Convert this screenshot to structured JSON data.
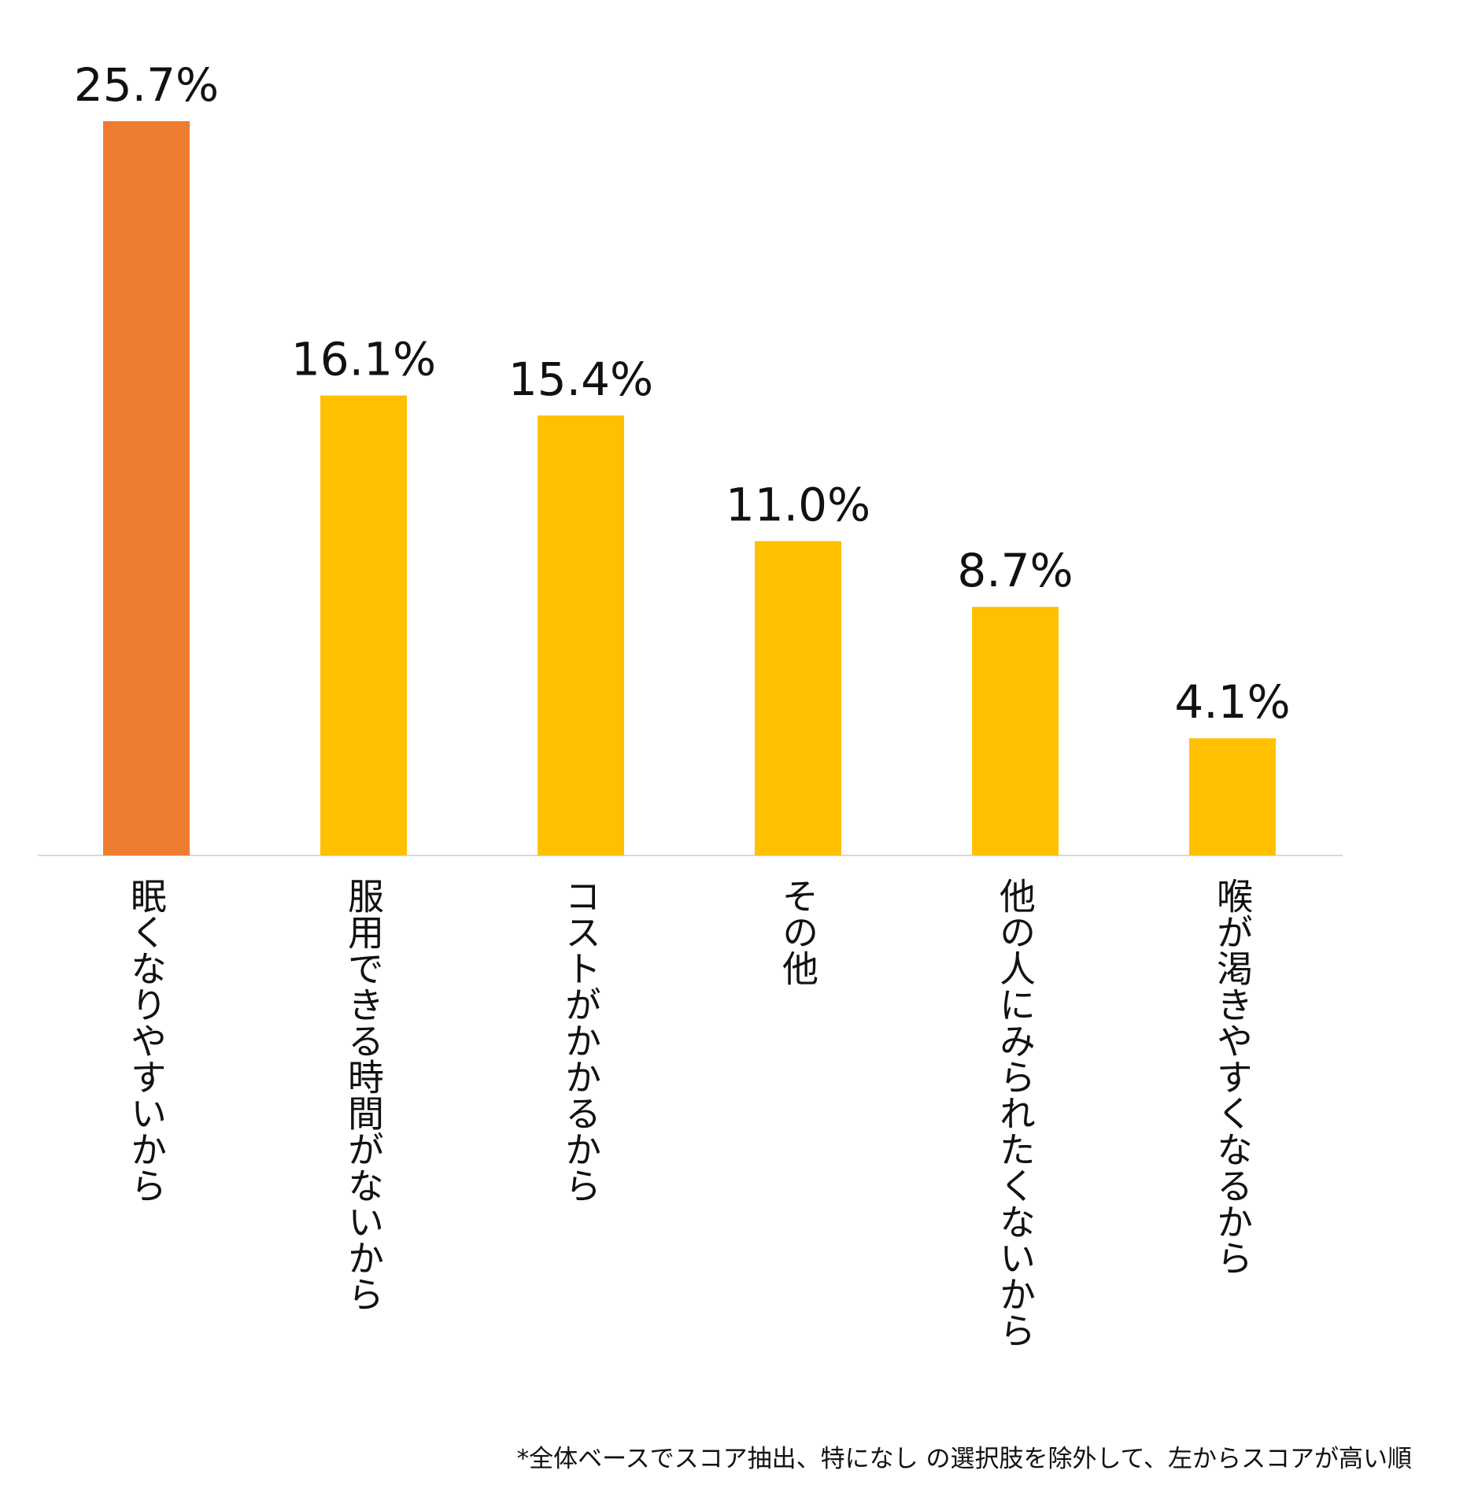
{
  "chart_data": {
    "type": "bar",
    "title": "",
    "xlabel": "",
    "ylabel": "",
    "ylim": [
      0,
      25.7
    ],
    "grid": false,
    "unit": "%",
    "categories": [
      "眠くなりやすいから",
      "服用できる時間がないから",
      "コストがかかるから",
      "その他",
      "他の人にみられたくないから",
      "喉が渇きやすくなるから"
    ],
    "values": [
      25.7,
      16.1,
      15.4,
      11.0,
      8.7,
      4.1
    ],
    "value_labels": [
      "25.7%",
      "16.1%",
      "15.4%",
      "11.0%",
      "8.7%",
      "4.1%"
    ],
    "colors": [
      "#ED7D31",
      "#FFC000",
      "#FFC000",
      "#FFC000",
      "#FFC000",
      "#FFC000"
    ],
    "axis_color": "#D9D9D9"
  },
  "footnote": "*全体ベースでスコア抽出、特になし の選択肢を除外して、左からスコアが高い順"
}
